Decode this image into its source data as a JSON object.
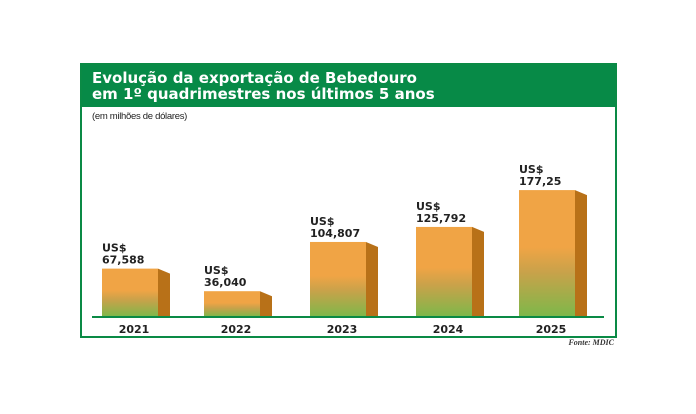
{
  "chart_data": {
    "type": "bar",
    "title": [
      "Evolução da exportação de Bebedouro",
      "em 1º quadrimestres nos últimos 5 anos"
    ],
    "subtitle": "(em milhões de dólares)",
    "categories": [
      "2021",
      "2022",
      "2023",
      "2024",
      "2025"
    ],
    "values": [
      67.588,
      36.04,
      104.807,
      125.792,
      177.25
    ],
    "data_labels": [
      {
        "prefix": "US$",
        "value": "67,588"
      },
      {
        "prefix": "US$",
        "value": "36,040"
      },
      {
        "prefix": "US$",
        "value": "104,807"
      },
      {
        "prefix": "US$",
        "value": "125,792"
      },
      {
        "prefix": "US$",
        "value": "177,25"
      }
    ],
    "xlabel": "",
    "ylabel": "",
    "grid": false,
    "source": "Fonte: MDIC",
    "colors": {
      "header": "#078a47",
      "bar_top": "#f0a445",
      "bar_bottom": "#7cb84a",
      "bar_side": "#b87118",
      "baseline": "#0a8a45"
    }
  }
}
